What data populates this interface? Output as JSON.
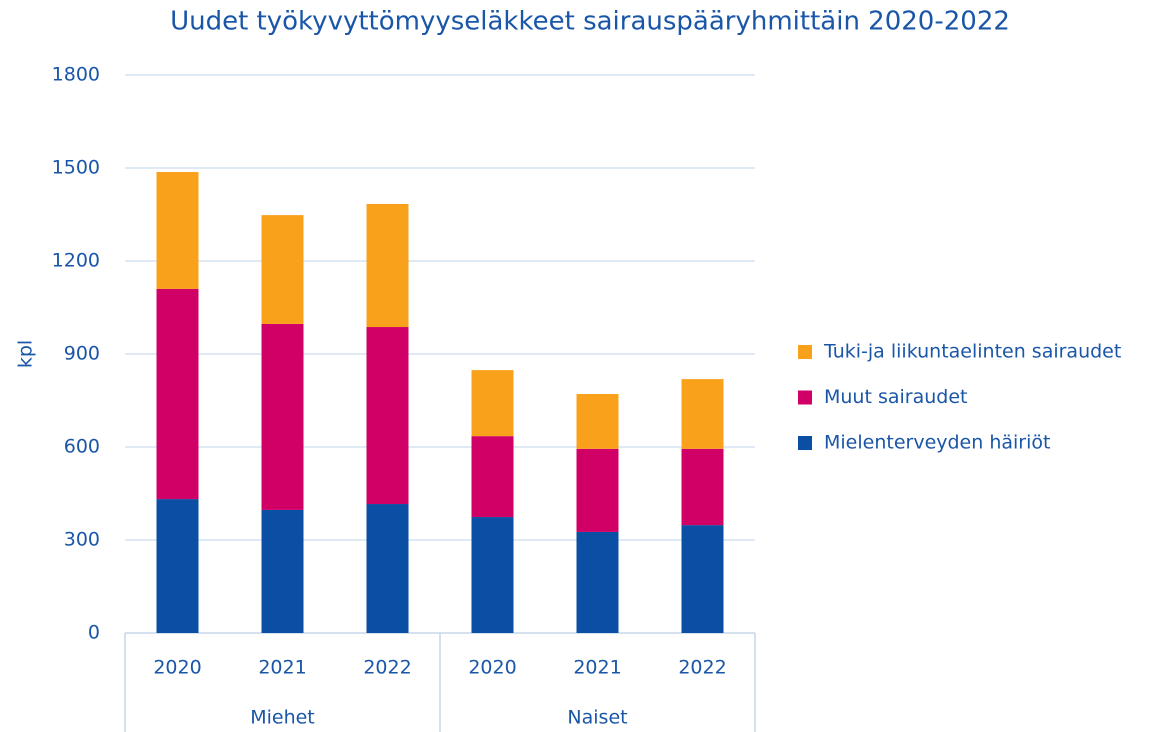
{
  "chart_data": {
    "type": "stacked_bar",
    "title": "Uudet työkyvyttömyyseläkkeet sairauspääryhmittäin 2020-2022",
    "ylabel": "kpl",
    "groups": [
      {
        "name": "Miehet",
        "categories": [
          "2020",
          "2021",
          "2022"
        ]
      },
      {
        "name": "Naiset",
        "categories": [
          "2020",
          "2021",
          "2022"
        ]
      }
    ],
    "series": [
      {
        "name": "Mielenterveyden häiriöt",
        "color": "#0a4fa3",
        "values": [
          432,
          397,
          416,
          374,
          326,
          348
        ]
      },
      {
        "name": "Muut sairaudet",
        "color": "#d10067",
        "values": [
          678,
          600,
          571,
          261,
          268,
          246
        ]
      },
      {
        "name": "Tuki-ja liikuntaelinten sairaudet",
        "color": "#f9a11b",
        "values": [
          377,
          351,
          397,
          213,
          177,
          225
        ]
      }
    ],
    "ylim": [
      0,
      1800
    ],
    "yticks": [
      0,
      300,
      600,
      900,
      1200,
      1500,
      1800
    ],
    "grid": true,
    "legend": "right"
  }
}
